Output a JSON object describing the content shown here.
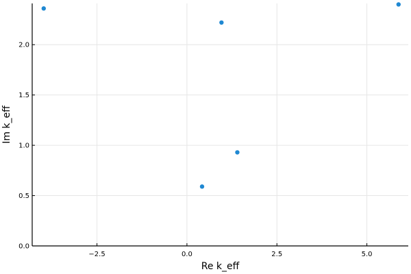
{
  "chart_data": {
    "type": "scatter",
    "title": "",
    "xlabel": "Re k_eff",
    "ylabel": "Im k_eff",
    "xlim": [
      -4.3,
      6.15
    ],
    "ylim": [
      0.0,
      2.41
    ],
    "xticks": [
      -2.5,
      0.0,
      2.5,
      5.0
    ],
    "xtick_labels": [
      "−2.5",
      "0.0",
      "2.5",
      "5.0"
    ],
    "yticks": [
      0.0,
      0.5,
      1.0,
      1.5,
      2.0
    ],
    "ytick_labels": [
      "0.0",
      "0.5",
      "1.0",
      "1.5",
      "2.0"
    ],
    "grid": true,
    "marker_color": "#1f88d2",
    "series": [
      {
        "points": [
          {
            "x": -3.98,
            "y": 2.36
          },
          {
            "x": 0.42,
            "y": 0.59
          },
          {
            "x": 0.96,
            "y": 2.22
          },
          {
            "x": 1.4,
            "y": 0.93
          },
          {
            "x": 5.88,
            "y": 2.4
          }
        ]
      }
    ]
  }
}
